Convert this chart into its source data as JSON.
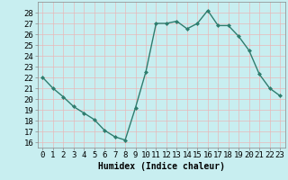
{
  "x": [
    0,
    1,
    2,
    3,
    4,
    5,
    6,
    7,
    8,
    9,
    10,
    11,
    12,
    13,
    14,
    15,
    16,
    17,
    18,
    19,
    20,
    21,
    22,
    23
  ],
  "y": [
    22,
    21,
    20.2,
    19.3,
    18.7,
    18.1,
    17.1,
    16.5,
    16.2,
    19.2,
    22.5,
    27.0,
    27.0,
    27.2,
    26.5,
    27.0,
    28.2,
    26.8,
    26.8,
    25.8,
    24.5,
    22.3,
    21.0,
    20.3
  ],
  "line_color": "#2e7d6e",
  "marker": "D",
  "marker_size": 2.0,
  "linewidth": 1.0,
  "xlabel": "Humidex (Indice chaleur)",
  "xlim": [
    -0.5,
    23.5
  ],
  "ylim": [
    15.5,
    29
  ],
  "yticks": [
    16,
    17,
    18,
    19,
    20,
    21,
    22,
    23,
    24,
    25,
    26,
    27,
    28
  ],
  "xticks": [
    0,
    1,
    2,
    3,
    4,
    5,
    6,
    7,
    8,
    9,
    10,
    11,
    12,
    13,
    14,
    15,
    16,
    17,
    18,
    19,
    20,
    21,
    22,
    23
  ],
  "background_color": "#c8eef0",
  "grid_color": "#e8b8b8",
  "xlabel_fontsize": 7,
  "tick_fontsize": 6.5
}
